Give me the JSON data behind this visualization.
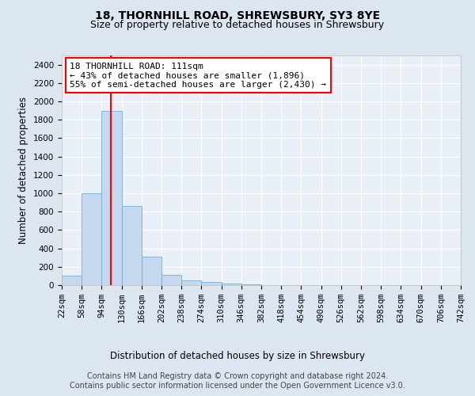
{
  "title1": "18, THORNHILL ROAD, SHREWSBURY, SY3 8YE",
  "title2": "Size of property relative to detached houses in Shrewsbury",
  "xlabel": "Distribution of detached houses by size in Shrewsbury",
  "ylabel": "Number of detached properties",
  "annotation_line1": "18 THORNHILL ROAD: 111sqm",
  "annotation_line2": "← 43% of detached houses are smaller (1,896)",
  "annotation_line3": "55% of semi-detached houses are larger (2,430) →",
  "footer1": "Contains HM Land Registry data © Crown copyright and database right 2024.",
  "footer2": "Contains public sector information licensed under the Open Government Licence v3.0.",
  "bin_edges": [
    22,
    58,
    94,
    130,
    166,
    202,
    238,
    274,
    310,
    346,
    382,
    418,
    454,
    490,
    526,
    562,
    598,
    634,
    670,
    706,
    742
  ],
  "bar_heights": [
    100,
    1000,
    1900,
    860,
    310,
    110,
    50,
    35,
    20,
    8,
    4,
    2,
    1,
    1,
    0,
    0,
    0,
    0,
    0,
    0
  ],
  "bar_color": "#c5d8ef",
  "bar_edge_color": "#7aadd4",
  "red_line_x": 111,
  "ylim": [
    0,
    2500
  ],
  "yticks": [
    0,
    200,
    400,
    600,
    800,
    1000,
    1200,
    1400,
    1600,
    1800,
    2000,
    2200,
    2400
  ],
  "background_color": "#dce6f0",
  "plot_bg_color": "#eaf0f7",
  "annotation_box_color": "white",
  "annotation_border_color": "red",
  "title1_fontsize": 10,
  "title2_fontsize": 9,
  "annotation_fontsize": 8,
  "axis_label_fontsize": 8.5,
  "tick_fontsize": 7.5,
  "footer_fontsize": 7
}
